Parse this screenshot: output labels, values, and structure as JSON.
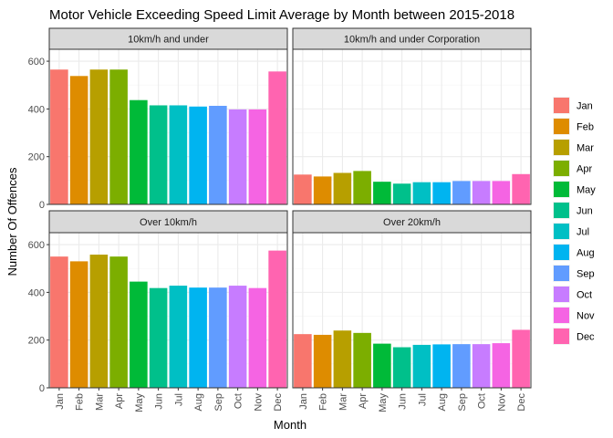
{
  "chart_data": {
    "type": "bar",
    "title": "Motor Vehicle Exceeding Speed Limit Average by Month between 2015-2018",
    "xlabel": "Month",
    "ylabel": "Number Of Offences",
    "categories": [
      "Jan",
      "Feb",
      "Mar",
      "Apr",
      "May",
      "Jun",
      "Jul",
      "Aug",
      "Sep",
      "Oct",
      "Nov",
      "Dec"
    ],
    "colors": [
      "#F8766D",
      "#DE8C00",
      "#B79F00",
      "#7CAE00",
      "#00BA38",
      "#00C08B",
      "#00BFC4",
      "#00B4F0",
      "#619CFF",
      "#C77CFF",
      "#F564E3",
      "#FF64B0"
    ],
    "ylim": [
      0,
      650
    ],
    "yticks": [
      0,
      200,
      400,
      600
    ],
    "grid": true,
    "legend_position": "right",
    "panels": [
      {
        "name": "10km/h and under",
        "values": [
          565,
          538,
          565,
          565,
          437,
          415,
          415,
          410,
          413,
          398,
          398,
          557
        ]
      },
      {
        "name": "10km/h and under Corporation",
        "values": [
          125,
          117,
          132,
          140,
          95,
          87,
          93,
          93,
          98,
          98,
          98,
          127
        ]
      },
      {
        "name": "Over 10km/h",
        "values": [
          550,
          530,
          558,
          550,
          445,
          418,
          428,
          420,
          420,
          428,
          418,
          575
        ]
      },
      {
        "name": "Over 20km/h",
        "values": [
          225,
          222,
          240,
          230,
          185,
          170,
          180,
          182,
          183,
          183,
          187,
          243
        ]
      }
    ]
  }
}
